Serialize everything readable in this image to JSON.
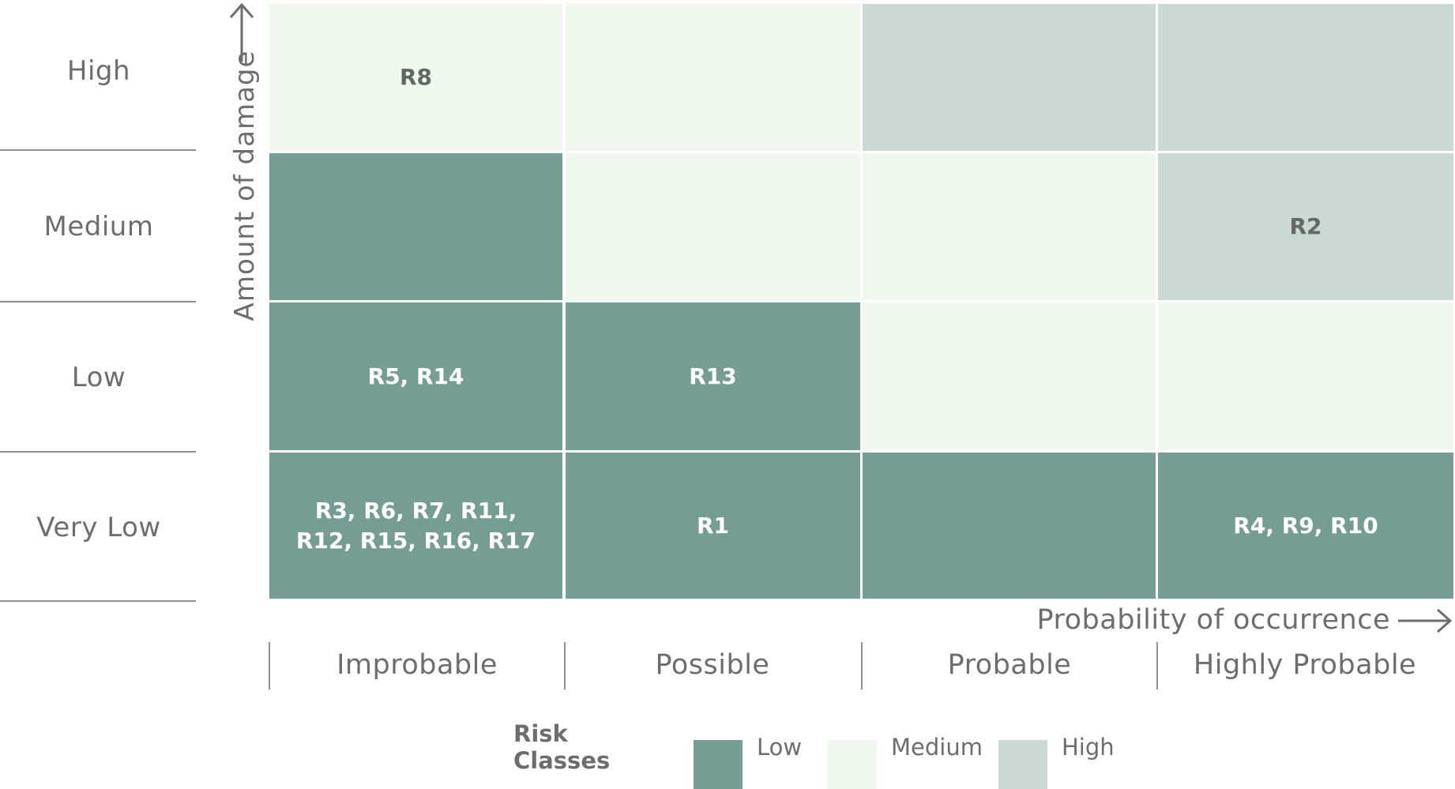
{
  "colors": {
    "low": "#759d91",
    "medium": "#f0f7ef",
    "high": "#ccd8d4",
    "text_light": "#ffffff",
    "text_dark": "#636864",
    "axis": "#6d6d6d"
  },
  "y_axis": {
    "title": "Amount of damage",
    "rows": [
      "High",
      "Medium",
      "Low",
      "Very Low"
    ]
  },
  "x_axis": {
    "title": "Probability of occurrence",
    "columns": [
      "Improbable",
      "Possible",
      "Probable",
      "Highly Probable"
    ]
  },
  "matrix": [
    [
      {
        "class": "medium",
        "text": "R8"
      },
      {
        "class": "medium",
        "text": ""
      },
      {
        "class": "high",
        "text": ""
      },
      {
        "class": "high",
        "text": ""
      }
    ],
    [
      {
        "class": "low",
        "text": ""
      },
      {
        "class": "medium",
        "text": ""
      },
      {
        "class": "medium",
        "text": ""
      },
      {
        "class": "high",
        "text": "R2"
      }
    ],
    [
      {
        "class": "low",
        "text": "R5, R14"
      },
      {
        "class": "low",
        "text": "R13"
      },
      {
        "class": "medium",
        "text": ""
      },
      {
        "class": "medium",
        "text": ""
      }
    ],
    [
      {
        "class": "low",
        "text": "R3, R6, R7, R11,\nR12, R15, R16, R17"
      },
      {
        "class": "low",
        "text": "R1"
      },
      {
        "class": "low",
        "text": ""
      },
      {
        "class": "low",
        "text": "R4, R9, R10"
      }
    ]
  ],
  "legend": {
    "title": "Risk Classes",
    "items": [
      {
        "class": "low",
        "label": "Low"
      },
      {
        "class": "medium",
        "label": "Medium"
      },
      {
        "class": "high",
        "label": "High"
      }
    ]
  }
}
